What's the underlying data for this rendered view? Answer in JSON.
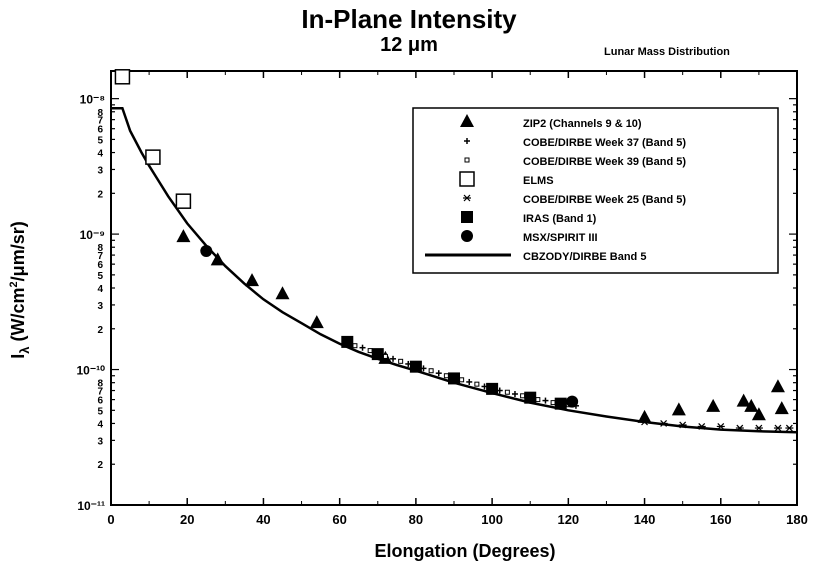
{
  "title": "In-Plane Intensity",
  "subtitle": "12 μm",
  "side_note": "Lunar Mass Distribution",
  "chart_data": {
    "type": "scatter",
    "title": "In-Plane Intensity",
    "subtitle": "12 μm",
    "xlabel": "Elongation (Degrees)",
    "ylabel_main": "I",
    "ylabel_sub": "λ",
    "ylabel_pre": "(W/cm",
    "ylabel_sup": "2",
    "ylabel_post": "/μm/sr)",
    "xlim": [
      0,
      180
    ],
    "ylim": [
      1e-11,
      1.6e-08
    ],
    "yscale": "log",
    "x_ticks": [
      "0",
      "20",
      "40",
      "60",
      "80",
      "100",
      "120",
      "140",
      "160",
      "180"
    ],
    "y_decade_labels": [
      {
        "value": 1e-08,
        "label": "10⁻⁸"
      },
      {
        "value": 1e-09,
        "label": "10⁻⁹"
      },
      {
        "value": 1e-10,
        "label": "10⁻¹⁰"
      },
      {
        "value": 1e-11,
        "label": "10⁻¹¹"
      }
    ],
    "y_minor_labels": [
      "2",
      "3",
      "4",
      "5",
      "6",
      "7",
      "8"
    ],
    "legend_position": "top-right",
    "series": [
      {
        "name": "ZIP2 (Channels 9 & 10)",
        "marker": "triangle",
        "x": [
          19,
          28,
          37,
          45,
          54,
          72,
          140,
          149,
          158,
          166,
          168,
          170,
          175,
          176
        ],
        "y": [
          9.5e-10,
          6.4e-10,
          4.5e-10,
          3.6e-10,
          2.2e-10,
          1.2e-10,
          4.4e-11,
          5e-11,
          5.3e-11,
          5.8e-11,
          5.3e-11,
          4.6e-11,
          7.4e-11,
          5.1e-11
        ]
      },
      {
        "name": "COBE/DIRBE Week 37 (Band 5)",
        "marker": "plus",
        "x": [
          62,
          66,
          70,
          74,
          78,
          82,
          86,
          90,
          94,
          98,
          102,
          106,
          110,
          114,
          118,
          122
        ],
        "y": [
          1.62e-10,
          1.45e-10,
          1.32e-10,
          1.2e-10,
          1.1e-10,
          1.02e-10,
          9.4e-11,
          8.7e-11,
          8.1e-11,
          7.5e-11,
          7e-11,
          6.6e-11,
          6.2e-11,
          5.9e-11,
          5.6e-11,
          5.4e-11
        ]
      },
      {
        "name": "COBE/DIRBE Week 39 (Band 5)",
        "marker": "small-square",
        "x": [
          64,
          68,
          72,
          76,
          80,
          84,
          88,
          92,
          96,
          100,
          104,
          108,
          112,
          116,
          120
        ],
        "y": [
          1.5e-10,
          1.38e-10,
          1.25e-10,
          1.15e-10,
          1.06e-10,
          9.8e-11,
          9e-11,
          8.4e-11,
          7.8e-11,
          7.3e-11,
          6.8e-11,
          6.4e-11,
          6e-11,
          5.7e-11,
          5.5e-11
        ]
      },
      {
        "name": "ELMS",
        "marker": "open-square",
        "x": [
          3,
          11,
          19
        ],
        "y": [
          1.45e-08,
          3.7e-09,
          1.75e-09
        ]
      },
      {
        "name": "COBE/DIRBE Week 25 (Band 5)",
        "marker": "star",
        "x": [
          140,
          145,
          150,
          155,
          160,
          165,
          170,
          175,
          178
        ],
        "y": [
          4.1e-11,
          4e-11,
          3.9e-11,
          3.8e-11,
          3.8e-11,
          3.7e-11,
          3.7e-11,
          3.7e-11,
          3.7e-11
        ]
      },
      {
        "name": "IRAS (Band 1)",
        "marker": "filled-square",
        "x": [
          62,
          70,
          80,
          90,
          100,
          110,
          118
        ],
        "y": [
          1.6e-10,
          1.3e-10,
          1.05e-10,
          8.6e-11,
          7.2e-11,
          6.2e-11,
          5.6e-11
        ]
      },
      {
        "name": "MSX/SPIRIT III",
        "marker": "filled-circle",
        "x": [
          25,
          121
        ],
        "y": [
          7.5e-10,
          5.8e-11
        ]
      },
      {
        "name": "CBZODY/DIRBE Band 5",
        "marker": "line",
        "x": [
          0,
          3,
          5,
          8,
          10,
          12,
          15,
          20,
          25,
          30,
          35,
          40,
          45,
          50,
          55,
          60,
          65,
          70,
          75,
          80,
          90,
          100,
          110,
          120,
          130,
          140,
          150,
          160,
          170,
          180
        ],
        "y": [
          8.5e-09,
          8.5e-09,
          5.8e-09,
          4e-09,
          3.2e-09,
          2.6e-09,
          1.9e-09,
          1.2e-09,
          8.2e-10,
          5.8e-10,
          4.3e-10,
          3.3e-10,
          2.65e-10,
          2.2e-10,
          1.82e-10,
          1.55e-10,
          1.35e-10,
          1.2e-10,
          1.08e-10,
          9.8e-11,
          8e-11,
          6.7e-11,
          5.7e-11,
          5e-11,
          4.5e-11,
          4.1e-11,
          3.8e-11,
          3.6e-11,
          3.5e-11,
          3.45e-11
        ]
      }
    ]
  }
}
